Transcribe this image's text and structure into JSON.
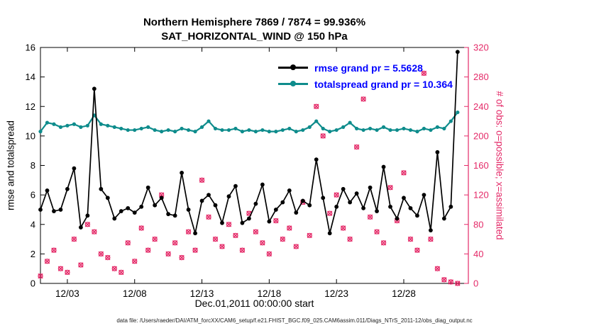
{
  "title": {
    "line1": "Northern Hemisphere 7869 / 7874 = 99.936%",
    "line2": "SAT_HORIZONTAL_WIND @ 150 hPa"
  },
  "axes": {
    "xlabel": "Dec.01,2011 00:00:00 start",
    "ylabel_left": "rmse and totalspread",
    "ylabel_right": "# of obs: o=possible; x=assimilated"
  },
  "legend": [
    {
      "label": "rmse grand pr = 5.5628",
      "color": "#000000"
    },
    {
      "label": "totalspread grand pr = 10.364",
      "color": "#0e8c8c"
    }
  ],
  "colors": {
    "rmse": "#000000",
    "totalspread": "#0e8c8c",
    "obs": "#e42a68",
    "legend_text": "#0000ff",
    "axis": "#000000"
  },
  "footer": "data file: /Users/raeder/DAI/ATM_forcXX/CAM6_setup/f.e21.FHIST_BGC.f09_025.CAM6assim.011/Diags_NTrS_2011-12/obs_diag_output.nc",
  "chart_data": {
    "type": "line",
    "title": "Northern Hemisphere 7869 / 7874 = 99.936% | SAT_HORIZONTAL_WIND @ 150 hPa",
    "xlabel": "Dec.01,2011 00:00:00 start",
    "ylabel_left": "rmse and totalspread",
    "ylabel_right": "# of obs: o=possible; x=assimilated",
    "x_unit": "days since 2011-12-01 00:00",
    "xlim": [
      0,
      31.8
    ],
    "ylim_left": [
      0,
      16
    ],
    "ylim_right": [
      0,
      320
    ],
    "grid": false,
    "legend_position": "top-center-inside",
    "xticks": [
      {
        "t": 2,
        "label": "12/03"
      },
      {
        "t": 7,
        "label": "12/08"
      },
      {
        "t": 12,
        "label": "12/13"
      },
      {
        "t": 17,
        "label": "12/18"
      },
      {
        "t": 22,
        "label": "12/23"
      },
      {
        "t": 27,
        "label": "12/28"
      }
    ],
    "yticks_left": [
      0,
      2,
      4,
      6,
      8,
      10,
      12,
      14,
      16
    ],
    "yticks_right": [
      0,
      40,
      80,
      120,
      160,
      200,
      240,
      280,
      320
    ],
    "x": [
      0,
      0.5,
      1,
      1.5,
      2,
      2.5,
      3,
      3.5,
      4,
      4.5,
      5,
      5.5,
      6,
      6.5,
      7,
      7.5,
      8,
      8.5,
      9,
      9.5,
      10,
      10.5,
      11,
      11.5,
      12,
      12.5,
      13,
      13.5,
      14,
      14.5,
      15,
      15.5,
      16,
      16.5,
      17,
      17.5,
      18,
      18.5,
      19,
      19.5,
      20,
      20.5,
      21,
      21.5,
      22,
      22.5,
      23,
      23.5,
      24,
      24.5,
      25,
      25.5,
      26,
      26.5,
      27,
      27.5,
      28,
      28.5,
      29,
      29.5,
      30,
      30.5,
      31
    ],
    "series": [
      {
        "name": "rmse",
        "label": "rmse grand pr = 5.5628",
        "axis": "left",
        "color": "#000000",
        "marker": "filled-circle",
        "values": [
          5.0,
          6.3,
          4.9,
          5.0,
          6.4,
          7.8,
          3.8,
          4.6,
          13.2,
          6.4,
          5.8,
          4.4,
          4.9,
          5.1,
          4.8,
          5.2,
          6.5,
          5.3,
          5.8,
          4.7,
          4.6,
          7.5,
          5.0,
          3.4,
          5.6,
          6.0,
          5.3,
          4.1,
          5.9,
          6.6,
          4.1,
          4.4,
          5.4,
          6.7,
          4.2,
          5.0,
          5.5,
          6.3,
          4.8,
          5.6,
          5.3,
          8.4,
          5.8,
          3.4,
          5.2,
          6.4,
          5.5,
          6.1,
          5.1,
          6.5,
          4.9,
          7.9,
          5.2,
          4.4,
          5.8,
          5.1,
          4.6,
          6.0,
          3.6,
          8.9,
          4.4,
          5.2,
          15.7
        ]
      },
      {
        "name": "totalspread",
        "label": "totalspread grand pr = 10.364",
        "axis": "left",
        "color": "#0e8c8c",
        "marker": "filled-circle",
        "values": [
          10.3,
          10.9,
          10.8,
          10.6,
          10.7,
          10.8,
          10.6,
          10.7,
          11.4,
          10.8,
          10.7,
          10.6,
          10.5,
          10.4,
          10.4,
          10.5,
          10.6,
          10.4,
          10.3,
          10.4,
          10.3,
          10.5,
          10.4,
          10.3,
          10.6,
          11.0,
          10.5,
          10.4,
          10.4,
          10.5,
          10.3,
          10.4,
          10.3,
          10.4,
          10.3,
          10.3,
          10.4,
          10.5,
          10.3,
          10.4,
          10.6,
          11.0,
          10.5,
          10.3,
          10.4,
          10.6,
          10.9,
          10.5,
          10.4,
          10.5,
          10.4,
          10.6,
          10.4,
          10.4,
          10.5,
          10.4,
          10.3,
          10.5,
          10.4,
          10.6,
          10.5,
          11.0,
          11.6
        ]
      },
      {
        "name": "observations",
        "label": "# of obs (o=possible, x=assimilated)",
        "axis": "right",
        "color": "#e42a68",
        "marker": "o+x",
        "values": [
          10,
          30,
          45,
          20,
          15,
          60,
          25,
          80,
          70,
          40,
          35,
          20,
          15,
          55,
          30,
          75,
          45,
          60,
          120,
          40,
          55,
          35,
          70,
          45,
          140,
          90,
          60,
          50,
          80,
          65,
          45,
          95,
          70,
          55,
          40,
          85,
          60,
          75,
          50,
          110,
          65,
          240,
          200,
          95,
          120,
          75,
          60,
          185,
          250,
          90,
          70,
          55,
          130,
          85,
          150,
          60,
          45,
          285,
          60,
          20,
          5,
          2,
          0
        ]
      }
    ]
  }
}
